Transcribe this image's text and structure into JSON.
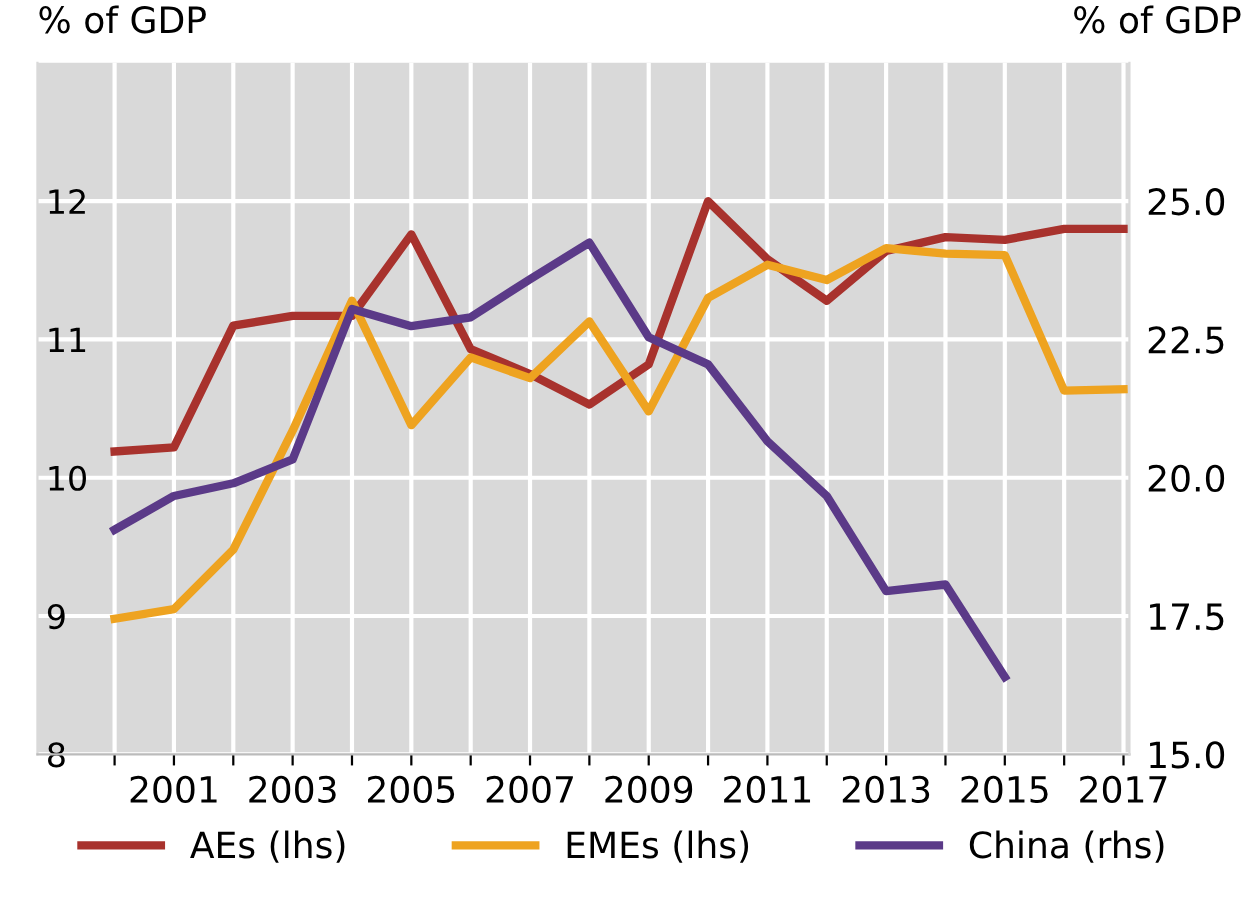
{
  "chart_data": {
    "type": "line",
    "xlabel": null,
    "ylabel": "% of GDP",
    "y2label": "% of GDP",
    "x": [
      2000,
      2001,
      2002,
      2003,
      2004,
      2005,
      2006,
      2007,
      2008,
      2009,
      2010,
      2011,
      2012,
      2013,
      2014,
      2015,
      2016,
      2017
    ],
    "series": [
      {
        "name": "AEs (lhs)",
        "color": "#a8322d",
        "values": [
          10.19,
          10.22,
          11.1,
          11.17,
          11.17,
          11.76,
          10.93,
          10.75,
          10.53,
          10.82,
          12.0,
          11.58,
          11.28,
          11.64,
          11.74,
          11.72,
          11.8,
          11.8
        ]
      },
      {
        "name": "EMEs (lhs)",
        "color": "#eea320",
        "values": [
          8.98,
          9.05,
          9.48,
          10.34,
          11.28,
          10.38,
          10.87,
          10.72,
          11.13,
          10.48,
          11.3,
          11.54,
          11.43,
          11.66,
          11.62,
          11.61,
          10.63,
          10.64
        ]
      },
      {
        "name": "China (rhs)",
        "color": "#5b3a88",
        "axis": "y2",
        "values": [
          19.06,
          19.67,
          19.9,
          20.33,
          23.05,
          22.74,
          22.9,
          23.59,
          24.25,
          22.54,
          22.05,
          20.66,
          19.67,
          17.95,
          18.07,
          16.4,
          null,
          null
        ]
      }
    ],
    "xlim": [
      1998.7,
      2017.1
    ],
    "xticks": [
      {
        "value": 2000,
        "label": null
      },
      2001,
      {
        "value": 2002,
        "label": null
      },
      2003,
      {
        "value": 2004,
        "label": null
      },
      2005,
      {
        "value": 2006,
        "label": null
      },
      2007,
      {
        "value": 2008,
        "label": null
      },
      2009,
      {
        "value": 2010,
        "label": null
      },
      2011,
      {
        "value": 2012,
        "label": null
      },
      2013,
      {
        "value": 2014,
        "label": null
      },
      2015,
      {
        "value": 2016,
        "label": null
      },
      2017
    ],
    "ylim": [
      8,
      13
    ],
    "yticks": [
      8,
      9,
      10,
      11,
      12
    ],
    "y2lim": [
      15,
      27.5
    ],
    "y2ticks": [
      {
        "value": 15,
        "label": "15.0"
      },
      17.5,
      {
        "value": 20,
        "label": "20.0"
      },
      22.5,
      {
        "value": 25,
        "label": "25.0"
      }
    ],
    "grid": true,
    "legend": "bottom",
    "marker": "none",
    "line_style": "solid"
  }
}
